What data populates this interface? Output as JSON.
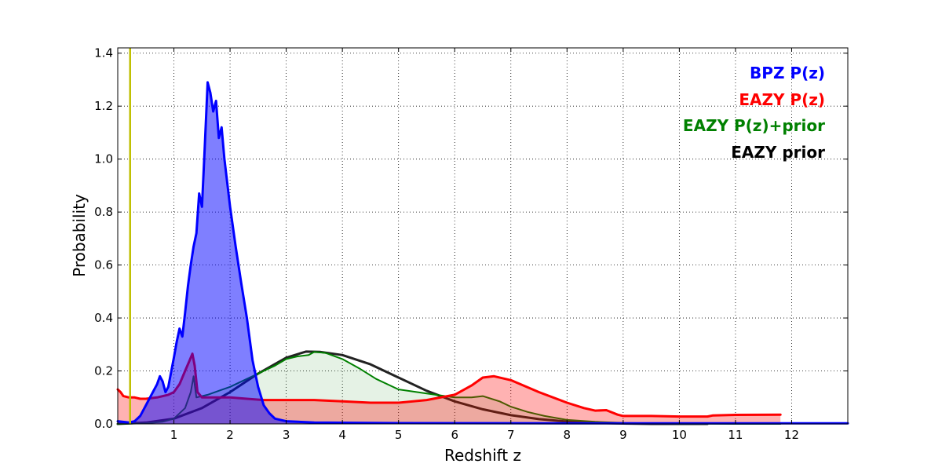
{
  "chart_data": {
    "type": "area",
    "xlabel": "Redshift z",
    "ylabel": "Probability",
    "xlim": [
      0,
      13
    ],
    "ylim": [
      0,
      1.42
    ],
    "x_ticks": [
      1,
      2,
      3,
      4,
      5,
      6,
      7,
      8,
      9,
      10,
      11,
      12
    ],
    "y_ticks": [
      0.0,
      0.2,
      0.4,
      0.6,
      0.8,
      1.0,
      1.2,
      1.4
    ],
    "y_tick_labels": [
      "0.0",
      "0.2",
      "0.4",
      "0.6",
      "0.8",
      "1.0",
      "1.2",
      "1.4"
    ],
    "grid": true,
    "legend_position": "top-right",
    "vertical_marker": {
      "x": 0.22,
      "color": "#bfbf00"
    },
    "series": [
      {
        "name": "EAZY prior",
        "color": "#222222",
        "fill": false,
        "points": [
          [
            0.0,
            0.0
          ],
          [
            0.5,
            0.005
          ],
          [
            1.0,
            0.02
          ],
          [
            1.5,
            0.06
          ],
          [
            2.0,
            0.12
          ],
          [
            2.5,
            0.19
          ],
          [
            3.0,
            0.25
          ],
          [
            3.35,
            0.273
          ],
          [
            3.6,
            0.272
          ],
          [
            4.0,
            0.26
          ],
          [
            4.5,
            0.225
          ],
          [
            5.0,
            0.175
          ],
          [
            5.5,
            0.125
          ],
          [
            6.0,
            0.085
          ],
          [
            6.5,
            0.055
          ],
          [
            7.0,
            0.033
          ],
          [
            7.5,
            0.018
          ],
          [
            8.0,
            0.009
          ],
          [
            8.5,
            0.004
          ],
          [
            9.0,
            0.0015
          ],
          [
            9.5,
            0.0
          ],
          [
            10.5,
            0.0
          ]
        ]
      },
      {
        "name": "EAZY P(z)+prior",
        "color": "#008000",
        "fill": "#008000",
        "points": [
          [
            0.0,
            0.0
          ],
          [
            0.5,
            0.002
          ],
          [
            0.8,
            0.008
          ],
          [
            1.0,
            0.02
          ],
          [
            1.2,
            0.06
          ],
          [
            1.3,
            0.12
          ],
          [
            1.35,
            0.18
          ],
          [
            1.4,
            0.1
          ],
          [
            1.6,
            0.11
          ],
          [
            1.8,
            0.125
          ],
          [
            2.0,
            0.14
          ],
          [
            2.3,
            0.17
          ],
          [
            2.6,
            0.2
          ],
          [
            2.8,
            0.22
          ],
          [
            3.0,
            0.245
          ],
          [
            3.2,
            0.255
          ],
          [
            3.4,
            0.26
          ],
          [
            3.5,
            0.272
          ],
          [
            3.7,
            0.268
          ],
          [
            4.0,
            0.245
          ],
          [
            4.3,
            0.21
          ],
          [
            4.6,
            0.17
          ],
          [
            5.0,
            0.13
          ],
          [
            5.5,
            0.115
          ],
          [
            6.0,
            0.1
          ],
          [
            6.3,
            0.1
          ],
          [
            6.5,
            0.105
          ],
          [
            6.8,
            0.085
          ],
          [
            7.0,
            0.065
          ],
          [
            7.3,
            0.045
          ],
          [
            7.6,
            0.03
          ],
          [
            8.0,
            0.015
          ],
          [
            8.5,
            0.008
          ],
          [
            9.0,
            0.004
          ],
          [
            10.0,
            0.001
          ],
          [
            11.0,
            0.0
          ],
          [
            11.8,
            0.0
          ]
        ]
      },
      {
        "name": "EAZY P(z)",
        "color": "#ff0000",
        "fill": "#ff0000",
        "points": [
          [
            0.0,
            0.13
          ],
          [
            0.05,
            0.12
          ],
          [
            0.1,
            0.105
          ],
          [
            0.2,
            0.1
          ],
          [
            0.3,
            0.1
          ],
          [
            0.4,
            0.095
          ],
          [
            0.5,
            0.095
          ],
          [
            0.7,
            0.1
          ],
          [
            0.9,
            0.11
          ],
          [
            1.0,
            0.12
          ],
          [
            1.1,
            0.15
          ],
          [
            1.2,
            0.2
          ],
          [
            1.28,
            0.24
          ],
          [
            1.33,
            0.265
          ],
          [
            1.37,
            0.22
          ],
          [
            1.42,
            0.12
          ],
          [
            1.5,
            0.1
          ],
          [
            1.7,
            0.1
          ],
          [
            2.0,
            0.1
          ],
          [
            2.3,
            0.095
          ],
          [
            2.6,
            0.09
          ],
          [
            3.0,
            0.09
          ],
          [
            3.5,
            0.09
          ],
          [
            4.0,
            0.085
          ],
          [
            4.5,
            0.08
          ],
          [
            5.0,
            0.08
          ],
          [
            5.5,
            0.09
          ],
          [
            6.0,
            0.11
          ],
          [
            6.3,
            0.145
          ],
          [
            6.5,
            0.175
          ],
          [
            6.7,
            0.18
          ],
          [
            7.0,
            0.165
          ],
          [
            7.5,
            0.12
          ],
          [
            8.0,
            0.08
          ],
          [
            8.3,
            0.06
          ],
          [
            8.5,
            0.05
          ],
          [
            8.7,
            0.052
          ],
          [
            8.9,
            0.035
          ],
          [
            9.0,
            0.03
          ],
          [
            9.5,
            0.03
          ],
          [
            10.0,
            0.028
          ],
          [
            10.5,
            0.028
          ],
          [
            10.6,
            0.032
          ],
          [
            11.0,
            0.034
          ],
          [
            11.8,
            0.035
          ]
        ]
      },
      {
        "name": "BPZ P(z)",
        "color": "#0000ff",
        "fill": "#0000ff",
        "points": [
          [
            0.0,
            0.01
          ],
          [
            0.2,
            0.005
          ],
          [
            0.3,
            0.01
          ],
          [
            0.4,
            0.03
          ],
          [
            0.5,
            0.07
          ],
          [
            0.6,
            0.11
          ],
          [
            0.7,
            0.15
          ],
          [
            0.75,
            0.18
          ],
          [
            0.8,
            0.16
          ],
          [
            0.85,
            0.12
          ],
          [
            0.9,
            0.14
          ],
          [
            1.0,
            0.25
          ],
          [
            1.05,
            0.31
          ],
          [
            1.1,
            0.36
          ],
          [
            1.15,
            0.33
          ],
          [
            1.2,
            0.42
          ],
          [
            1.25,
            0.52
          ],
          [
            1.3,
            0.6
          ],
          [
            1.35,
            0.67
          ],
          [
            1.4,
            0.72
          ],
          [
            1.45,
            0.87
          ],
          [
            1.5,
            0.82
          ],
          [
            1.55,
            1.05
          ],
          [
            1.6,
            1.29
          ],
          [
            1.65,
            1.25
          ],
          [
            1.7,
            1.18
          ],
          [
            1.75,
            1.22
          ],
          [
            1.8,
            1.08
          ],
          [
            1.85,
            1.12
          ],
          [
            1.9,
            1.0
          ],
          [
            2.0,
            0.82
          ],
          [
            2.1,
            0.67
          ],
          [
            2.2,
            0.53
          ],
          [
            2.3,
            0.4
          ],
          [
            2.4,
            0.24
          ],
          [
            2.5,
            0.14
          ],
          [
            2.6,
            0.07
          ],
          [
            2.7,
            0.04
          ],
          [
            2.8,
            0.02
          ],
          [
            3.0,
            0.01
          ],
          [
            3.5,
            0.005
          ],
          [
            5.0,
            0.003
          ],
          [
            8.0,
            0.002
          ],
          [
            13.0,
            0.002
          ]
        ]
      }
    ]
  },
  "legend": {
    "items": [
      {
        "label": "BPZ P(z)",
        "color": "#0000ff"
      },
      {
        "label": "EAZY P(z)",
        "color": "#ff0000"
      },
      {
        "label": "EAZY P(z)+prior",
        "color": "#008000"
      },
      {
        "label": "EAZY prior",
        "color": "#000000"
      }
    ]
  }
}
